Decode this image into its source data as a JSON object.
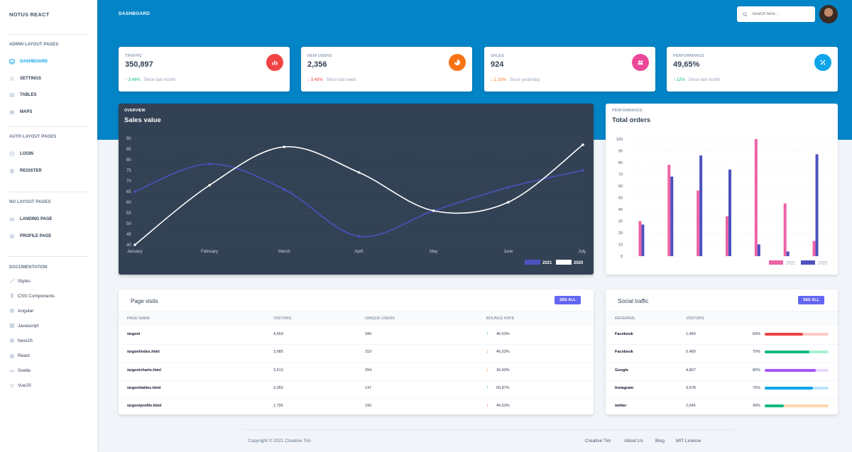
{
  "brand": "NOTUS REACT",
  "header": {
    "title": "DASHBOARD",
    "search_placeholder": "Search here..."
  },
  "sidebar": {
    "admin_heading": "ADMIN LAYOUT PAGES",
    "admin_items": [
      {
        "label": "DASHBOARD",
        "icon": "tv-icon",
        "active": true
      },
      {
        "label": "SETTINGS",
        "icon": "tools-icon",
        "active": false
      },
      {
        "label": "TABLES",
        "icon": "table-icon",
        "active": false
      },
      {
        "label": "MAPS",
        "icon": "map-icon",
        "active": false
      }
    ],
    "auth_heading": "AUTH LAYOUT PAGES",
    "auth_items": [
      {
        "label": "LOGIN",
        "icon": "fingerprint-icon"
      },
      {
        "label": "REGISTER",
        "icon": "clipboard-icon"
      }
    ],
    "nolayout_heading": "NO LAYOUT PAGES",
    "nolayout_items": [
      {
        "label": "LANDING PAGE",
        "icon": "newspaper-icon"
      },
      {
        "label": "PROFILE PAGE",
        "icon": "user-circle-icon"
      }
    ],
    "docs_heading": "DOCUMENTATION",
    "docs_items": [
      {
        "label": "Styles",
        "icon": "paint-brush-icon"
      },
      {
        "label": "CSS Components",
        "icon": "css-icon"
      },
      {
        "label": "Angular",
        "icon": "angular-icon"
      },
      {
        "label": "Javascript",
        "icon": "js-icon"
      },
      {
        "label": "NextJS",
        "icon": "nextjs-icon"
      },
      {
        "label": "React",
        "icon": "react-icon"
      },
      {
        "label": "Svelte",
        "icon": "link-icon"
      },
      {
        "label": "VueJS",
        "icon": "vue-icon"
      }
    ]
  },
  "stats": [
    {
      "label": "TRAFFIC",
      "value": "350,897",
      "change": "3.48%",
      "direction": "up",
      "change_color": "#10b981",
      "since": "Since last month",
      "icon": "chart-bar-icon",
      "icon_color": "#ef4444"
    },
    {
      "label": "NEW USERS",
      "value": "2,356",
      "change": "3.48%",
      "direction": "down",
      "change_color": "#ef4444",
      "since": "Since last week",
      "icon": "chart-pie-icon",
      "icon_color": "#f97316"
    },
    {
      "label": "SALES",
      "value": "924",
      "change": "1.10%",
      "direction": "down",
      "change_color": "#f97316",
      "since": "Since yesterday",
      "icon": "users-icon",
      "icon_color": "#ec4899"
    },
    {
      "label": "PERFORMANCE",
      "value": "49,65%",
      "change": "12%",
      "direction": "up",
      "change_color": "#10b981",
      "since": "Since last month",
      "icon": "percent-icon",
      "icon_color": "#0ea5e9"
    }
  ],
  "overview": {
    "subtitle": "OVERVIEW",
    "title": "Sales value"
  },
  "orders": {
    "subtitle": "PERFORMANCE",
    "title": "Total orders"
  },
  "chart_data": [
    {
      "type": "line",
      "title": "Sales value",
      "categories": [
        "January",
        "February",
        "March",
        "April",
        "May",
        "June",
        "July"
      ],
      "ylim": [
        40,
        90
      ],
      "yticks": [
        40,
        45,
        50,
        55,
        60,
        65,
        70,
        75,
        80,
        85,
        90
      ],
      "grid": true,
      "legend": "bottom-right",
      "series": [
        {
          "name": "2021",
          "color": "#4c51bf",
          "values": [
            65,
            78,
            66,
            44,
            56,
            67,
            75
          ]
        },
        {
          "name": "2020",
          "color": "#ffffff",
          "values": [
            40,
            68,
            86,
            74,
            56,
            60,
            87
          ]
        }
      ]
    },
    {
      "type": "bar",
      "title": "Total orders",
      "categories": [
        "",
        "",
        "",
        "",
        "",
        "",
        ""
      ],
      "ylim": [
        0,
        100
      ],
      "yticks": [
        0,
        10,
        20,
        30,
        40,
        50,
        60,
        70,
        80,
        90,
        100
      ],
      "grid": true,
      "legend": "bottom-right",
      "series": [
        {
          "name": "2021",
          "color": "#ed64a6",
          "values": [
            30,
            78,
            56,
            34,
            100,
            45,
            13
          ]
        },
        {
          "name": "2020",
          "color": "#4c51bf",
          "values": [
            27,
            68,
            86,
            74,
            10,
            4,
            87
          ]
        }
      ]
    }
  ],
  "page_visits": {
    "title": "Page visits",
    "button": "SEE ALL",
    "columns": [
      "PAGE NAME",
      "VISITORS",
      "UNIQUE USERS",
      "BOUNCE RATE"
    ],
    "rows": [
      {
        "page": "/argon/",
        "visitors": "4,569",
        "unique": "340",
        "bounce": "46,53%",
        "direction": "up",
        "color": "#10b981"
      },
      {
        "page": "/argon/index.html",
        "visitors": "3,985",
        "unique": "319",
        "bounce": "46,53%",
        "direction": "down",
        "color": "#f97316"
      },
      {
        "page": "/argon/charts.html",
        "visitors": "3,513",
        "unique": "294",
        "bounce": "36,49%",
        "direction": "down",
        "color": "#f97316"
      },
      {
        "page": "/argon/tables.html",
        "visitors": "2,050",
        "unique": "147",
        "bounce": "50,87%",
        "direction": "up",
        "color": "#10b981"
      },
      {
        "page": "/argon/profile.html",
        "visitors": "1,795",
        "unique": "190",
        "bounce": "46,53%",
        "direction": "down",
        "color": "#ef4444"
      }
    ]
  },
  "social_traffic": {
    "title": "Social traffic",
    "button": "SEE ALL",
    "columns": [
      "REFERRAL",
      "VISITORS"
    ],
    "rows": [
      {
        "referral": "Facebook",
        "visitors": "1,480",
        "percent": "60%",
        "fraction": 0.6,
        "fg": "#ef4444",
        "bg": "#fecaca"
      },
      {
        "referral": "Facebook",
        "visitors": "5,480",
        "percent": "70%",
        "fraction": 0.7,
        "fg": "#10b981",
        "bg": "#a7f3d0"
      },
      {
        "referral": "Google",
        "visitors": "4,807",
        "percent": "80%",
        "fraction": 0.8,
        "fg": "#a855f7",
        "bg": "#e9d5ff"
      },
      {
        "referral": "Instagram",
        "visitors": "3,678",
        "percent": "75%",
        "fraction": 0.75,
        "fg": "#0ea5e9",
        "bg": "#bae6fd"
      },
      {
        "referral": "twitter",
        "visitors": "2,645",
        "percent": "30%",
        "fraction": 0.3,
        "fg": "#10b981",
        "bg": "#fed7aa"
      }
    ]
  },
  "footer": {
    "copyright": "Copyright © 2021 Creative Tim",
    "links": [
      "Creative Tim",
      "About Us",
      "Blog",
      "MIT License"
    ]
  }
}
